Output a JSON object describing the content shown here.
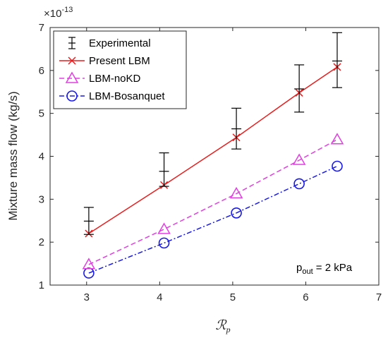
{
  "chart_data": {
    "type": "line",
    "xlabel": "ℛ",
    "xlabel_subscript": "p",
    "ylabel": "Mixture mass flow (kg/s)",
    "y_exponent_base": "×10",
    "y_exponent_power": "-13",
    "xlim": [
      2.5,
      7
    ],
    "ylim": [
      1,
      7
    ],
    "x_ticks": [
      "3",
      "4",
      "5",
      "6",
      "7"
    ],
    "y_ticks": [
      "1",
      "2",
      "3",
      "4",
      "5",
      "6",
      "7"
    ],
    "grid": false,
    "legend_position": "top-left",
    "annotation": {
      "main": "p",
      "sub": "out",
      "rest": " = 2 kPa"
    },
    "series": [
      {
        "name": "Experimental",
        "style": "errorbar",
        "color": "#000000",
        "x": [
          3.03,
          4.06,
          5.05,
          5.91,
          6.43
        ],
        "y": [
          2.49,
          3.65,
          4.64,
          5.57,
          6.22
        ],
        "err_low": [
          2.18,
          3.3,
          4.17,
          5.03,
          5.6
        ],
        "err_high": [
          2.81,
          4.08,
          5.12,
          6.13,
          6.88
        ]
      },
      {
        "name": "Present LBM",
        "style": "solid-x",
        "color": "#e81d1d",
        "x": [
          3.03,
          4.06,
          5.05,
          5.91,
          6.43
        ],
        "y": [
          2.2,
          3.33,
          4.44,
          5.48,
          6.08
        ]
      },
      {
        "name": "LBM-noKD",
        "style": "dashed-triangle",
        "color": "#e040e0",
        "x": [
          3.03,
          4.06,
          5.05,
          5.91,
          6.43
        ],
        "y": [
          1.48,
          2.3,
          3.13,
          3.91,
          4.39
        ]
      },
      {
        "name": "LBM-Bosanquet",
        "style": "dashdot-circle",
        "color": "#1a1ae6",
        "x": [
          3.03,
          4.06,
          5.05,
          5.91,
          6.43
        ],
        "y": [
          1.28,
          1.98,
          2.68,
          3.36,
          3.77
        ]
      }
    ]
  }
}
